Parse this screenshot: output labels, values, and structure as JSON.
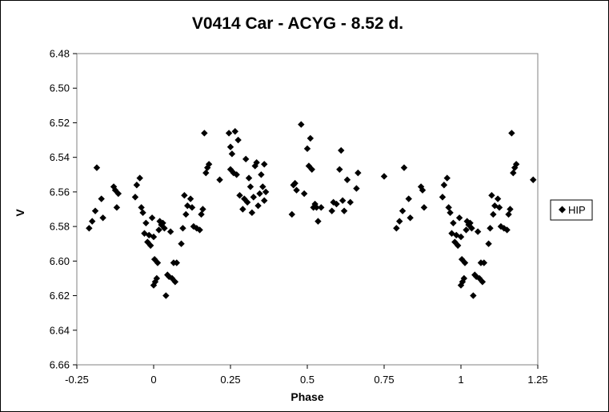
{
  "chart_data": {
    "type": "scatter",
    "title": "V0414 Car - ACYG - 8.52 d.",
    "xlabel": "Phase",
    "ylabel": "V",
    "xlim": [
      -0.25,
      1.25
    ],
    "ylim": [
      6.66,
      6.48
    ],
    "y_axis_inverted": true,
    "x_ticks": [
      "-0.25",
      "0",
      "0.25",
      "0.5",
      "0.75",
      "1",
      "1.25"
    ],
    "y_ticks": [
      "6.48",
      "6.50",
      "6.52",
      "6.54",
      "6.56",
      "6.58",
      "6.60",
      "6.62",
      "6.64",
      "6.66"
    ],
    "grid": false,
    "legend_position": "right",
    "marker": "diamond",
    "marker_color": "#000000",
    "series": [
      {
        "name": "HIP",
        "points": [
          [
            -0.21,
            6.581
          ],
          [
            -0.2,
            6.577
          ],
          [
            -0.19,
            6.571
          ],
          [
            -0.185,
            6.546
          ],
          [
            -0.17,
            6.564
          ],
          [
            -0.165,
            6.575
          ],
          [
            -0.13,
            6.557
          ],
          [
            -0.125,
            6.559
          ],
          [
            -0.12,
            6.569
          ],
          [
            -0.115,
            6.561
          ],
          [
            -0.06,
            6.563
          ],
          [
            -0.055,
            6.556
          ],
          [
            -0.045,
            6.552
          ],
          [
            -0.04,
            6.569
          ],
          [
            -0.035,
            6.572
          ],
          [
            -0.03,
            6.584
          ],
          [
            -0.025,
            6.578
          ],
          [
            -0.02,
            6.589
          ],
          [
            -0.015,
            6.585
          ],
          [
            -0.01,
            6.591
          ],
          [
            -0.005,
            6.575
          ],
          [
            0.0,
            6.586
          ],
          [
            0.0,
            6.614
          ],
          [
            0.003,
            6.599
          ],
          [
            0.005,
            6.612
          ],
          [
            0.01,
            6.61
          ],
          [
            0.013,
            6.601
          ],
          [
            0.017,
            6.582
          ],
          [
            0.02,
            6.577
          ],
          [
            0.025,
            6.579
          ],
          [
            0.03,
            6.578
          ],
          [
            0.035,
            6.581
          ],
          [
            0.04,
            6.62
          ],
          [
            0.045,
            6.608
          ],
          [
            0.05,
            6.609
          ],
          [
            0.055,
            6.583
          ],
          [
            0.06,
            6.61
          ],
          [
            0.065,
            6.601
          ],
          [
            0.07,
            6.612
          ],
          [
            0.075,
            6.601
          ],
          [
            0.09,
            6.59
          ],
          [
            0.095,
            6.581
          ],
          [
            0.1,
            6.562
          ],
          [
            0.105,
            6.573
          ],
          [
            0.11,
            6.568
          ],
          [
            0.12,
            6.564
          ],
          [
            0.125,
            6.569
          ],
          [
            0.13,
            6.58
          ],
          [
            0.14,
            6.581
          ],
          [
            0.15,
            6.582
          ],
          [
            0.155,
            6.573
          ],
          [
            0.16,
            6.57
          ],
          [
            0.165,
            6.526
          ],
          [
            0.17,
            6.549
          ],
          [
            0.175,
            6.546
          ],
          [
            0.18,
            6.544
          ],
          [
            0.215,
            6.553
          ],
          [
            0.245,
            6.526
          ],
          [
            0.25,
            6.547
          ],
          [
            0.25,
            6.534
          ],
          [
            0.255,
            6.538
          ],
          [
            0.26,
            6.549
          ],
          [
            0.265,
            6.525
          ],
          [
            0.27,
            6.55
          ],
          [
            0.275,
            6.53
          ],
          [
            0.28,
            6.562
          ],
          [
            0.29,
            6.57
          ],
          [
            0.295,
            6.564
          ],
          [
            0.3,
            6.541
          ],
          [
            0.305,
            6.566
          ],
          [
            0.31,
            6.552
          ],
          [
            0.315,
            6.557
          ],
          [
            0.32,
            6.572
          ],
          [
            0.325,
            6.563
          ],
          [
            0.33,
            6.545
          ],
          [
            0.335,
            6.543
          ],
          [
            0.34,
            6.568
          ],
          [
            0.345,
            6.561
          ],
          [
            0.35,
            6.55
          ],
          [
            0.355,
            6.557
          ],
          [
            0.36,
            6.565
          ],
          [
            0.365,
            6.56
          ],
          [
            0.36,
            6.544
          ],
          [
            0.45,
            6.573
          ],
          [
            0.455,
            6.556
          ],
          [
            0.46,
            6.555
          ],
          [
            0.465,
            6.559
          ],
          [
            0.48,
            6.521
          ],
          [
            0.49,
            6.561
          ],
          [
            0.5,
            6.535
          ],
          [
            0.505,
            6.545
          ],
          [
            0.51,
            6.529
          ],
          [
            0.515,
            6.547
          ],
          [
            0.52,
            6.569
          ],
          [
            0.525,
            6.567
          ],
          [
            0.53,
            6.569
          ],
          [
            0.535,
            6.577
          ],
          [
            0.545,
            6.569
          ],
          [
            0.58,
            6.571
          ],
          [
            0.585,
            6.566
          ],
          [
            0.595,
            6.567
          ],
          [
            0.605,
            6.547
          ],
          [
            0.61,
            6.536
          ],
          [
            0.615,
            6.565
          ],
          [
            0.62,
            6.571
          ],
          [
            0.63,
            6.553
          ],
          [
            0.64,
            6.566
          ],
          [
            0.66,
            6.558
          ],
          [
            0.665,
            6.549
          ],
          [
            0.75,
            6.551
          ],
          [
            0.79,
            6.581
          ],
          [
            0.8,
            6.577
          ],
          [
            0.81,
            6.571
          ],
          [
            0.815,
            6.546
          ],
          [
            0.83,
            6.564
          ],
          [
            0.835,
            6.575
          ],
          [
            0.87,
            6.557
          ],
          [
            0.875,
            6.559
          ],
          [
            0.88,
            6.569
          ],
          [
            0.94,
            6.563
          ],
          [
            0.945,
            6.556
          ],
          [
            0.955,
            6.552
          ],
          [
            0.96,
            6.569
          ],
          [
            0.965,
            6.572
          ],
          [
            0.97,
            6.584
          ],
          [
            0.975,
            6.578
          ],
          [
            0.98,
            6.589
          ],
          [
            0.985,
            6.585
          ],
          [
            0.99,
            6.591
          ],
          [
            0.995,
            6.575
          ],
          [
            1.0,
            6.586
          ],
          [
            1.0,
            6.614
          ],
          [
            1.003,
            6.599
          ],
          [
            1.005,
            6.612
          ],
          [
            1.01,
            6.61
          ],
          [
            1.013,
            6.601
          ],
          [
            1.017,
            6.582
          ],
          [
            1.02,
            6.577
          ],
          [
            1.025,
            6.579
          ],
          [
            1.03,
            6.578
          ],
          [
            1.035,
            6.581
          ],
          [
            1.04,
            6.62
          ],
          [
            1.045,
            6.608
          ],
          [
            1.05,
            6.609
          ],
          [
            1.055,
            6.583
          ],
          [
            1.06,
            6.61
          ],
          [
            1.065,
            6.601
          ],
          [
            1.07,
            6.612
          ],
          [
            1.075,
            6.601
          ],
          [
            1.09,
            6.59
          ],
          [
            1.095,
            6.581
          ],
          [
            1.1,
            6.562
          ],
          [
            1.105,
            6.573
          ],
          [
            1.11,
            6.568
          ],
          [
            1.12,
            6.564
          ],
          [
            1.125,
            6.569
          ],
          [
            1.13,
            6.58
          ],
          [
            1.14,
            6.581
          ],
          [
            1.15,
            6.582
          ],
          [
            1.155,
            6.573
          ],
          [
            1.16,
            6.57
          ],
          [
            1.165,
            6.526
          ],
          [
            1.17,
            6.549
          ],
          [
            1.175,
            6.546
          ],
          [
            1.18,
            6.544
          ],
          [
            1.235,
            6.553
          ]
        ]
      }
    ]
  }
}
